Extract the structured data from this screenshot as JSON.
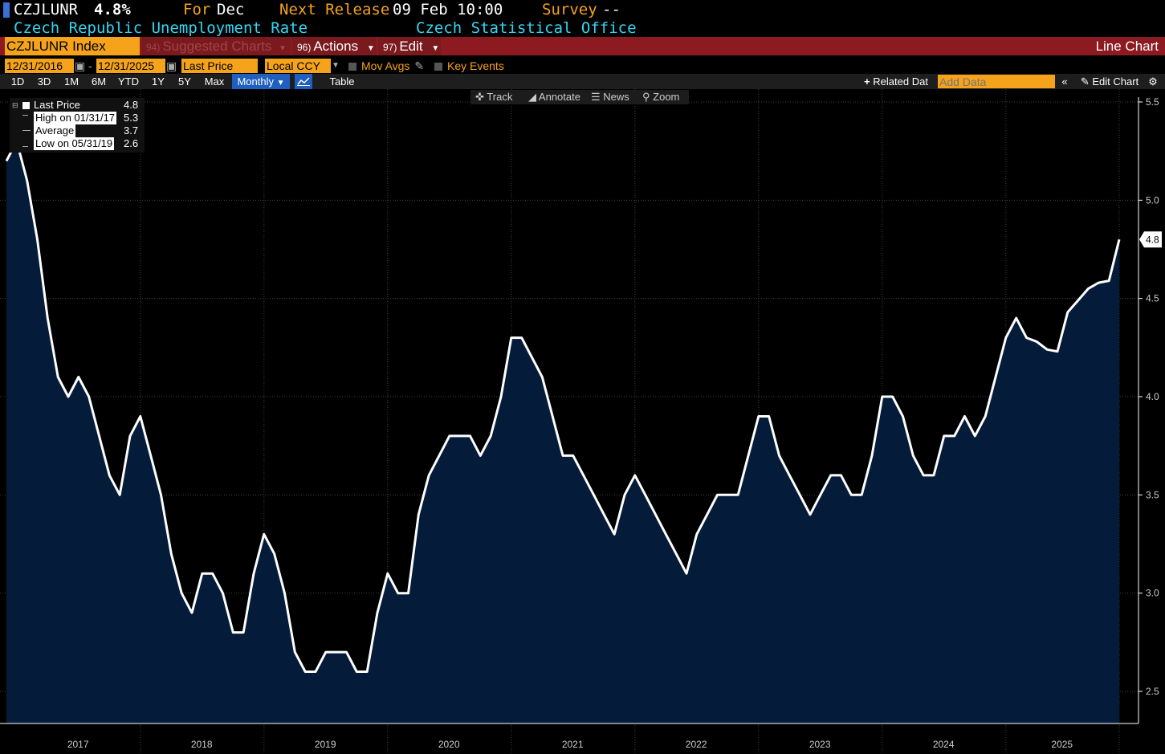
{
  "header": {
    "ticker": "CZJLUNR",
    "last_value": "4.8%",
    "for_label": "For",
    "for_period": "Dec",
    "next_release_label": "Next Release",
    "next_release_value": "09 Feb 10:00",
    "survey_label": "Survey",
    "survey_value": "--",
    "description": "Czech Republic Unemployment Rate",
    "source": "Czech Statistical Office"
  },
  "toolbar": {
    "ticker_field": "CZJLUNR Index",
    "suggested_num": "94)",
    "suggested_label": "Suggested Charts",
    "actions_num": "96)",
    "actions_label": "Actions",
    "edit_num": "97)",
    "edit_label": "Edit",
    "chart_type": "Line Chart"
  },
  "date_row": {
    "start_date": "12/31/2016",
    "separator": "-",
    "end_date": "12/31/2025",
    "price_field": "Last Price",
    "currency": "Local CCY",
    "mov_avgs": "Mov Avgs",
    "key_events": "Key Events"
  },
  "periods": {
    "buttons": [
      "1D",
      "3D",
      "1M",
      "6M",
      "YTD",
      "1Y",
      "5Y",
      "Max"
    ],
    "frequency": "Monthly",
    "table": "Table",
    "related_data": "Related Dat",
    "add_data_placeholder": "Add Data",
    "edit_chart": "Edit Chart"
  },
  "chart_tools": {
    "track": "Track",
    "annotate": "Annotate",
    "news": "News",
    "zoom": "Zoom"
  },
  "legend": {
    "last_price_label": "Last Price",
    "last_price_value": "4.8",
    "high_label": "High on 01/31/17",
    "high_value": "5.3",
    "average_label": "Average",
    "average_value": "3.7",
    "low_label": "Low on 05/31/19",
    "low_value": "2.6"
  },
  "colors": {
    "line": "#ffffff",
    "area_fill": "#041c3a",
    "accent_orange": "#f5a31a",
    "toolbar_red": "#8c1a20",
    "cyan_text": "#33d6f2"
  },
  "chart_data": {
    "type": "area",
    "title": "",
    "xlabel": "",
    "ylabel": "",
    "ylim": [
      2.4,
      5.55
    ],
    "yticks": [
      "2.5",
      "3.0",
      "3.5",
      "4.0",
      "4.5",
      "5.0",
      "5.5"
    ],
    "xtick_labels": [
      "2017",
      "2018",
      "2019",
      "2020",
      "2021",
      "2022",
      "2023",
      "2024",
      "2025"
    ],
    "last_value_label": "4.8",
    "series": [
      {
        "start": "2016-12",
        "end": "2025-12",
        "frequency": "monthly",
        "values": [
          5.2,
          5.3,
          5.1,
          4.8,
          4.4,
          4.1,
          4.0,
          4.1,
          4.0,
          3.8,
          3.6,
          3.5,
          3.8,
          3.9,
          3.7,
          3.5,
          3.2,
          3.0,
          2.9,
          3.1,
          3.1,
          3.0,
          2.8,
          2.8,
          3.1,
          3.3,
          3.2,
          3.0,
          2.7,
          2.6,
          2.6,
          2.7,
          2.7,
          2.7,
          2.6,
          2.6,
          2.9,
          3.1,
          3.0,
          3.0,
          3.4,
          3.6,
          3.7,
          3.8,
          3.8,
          3.8,
          3.7,
          3.8,
          4.0,
          4.3,
          4.3,
          4.2,
          4.1,
          3.9,
          3.7,
          3.7,
          3.6,
          3.5,
          3.4,
          3.3,
          3.5,
          3.6,
          3.5,
          3.4,
          3.3,
          3.2,
          3.1,
          3.3,
          3.4,
          3.5,
          3.5,
          3.5,
          3.7,
          3.9,
          3.9,
          3.7,
          3.6,
          3.5,
          3.4,
          3.5,
          3.6,
          3.6,
          3.5,
          3.5,
          3.7,
          4.0,
          4.0,
          3.9,
          3.7,
          3.6,
          3.6,
          3.8,
          3.8,
          3.9,
          3.8,
          3.9,
          4.1,
          4.3,
          4.4,
          4.3,
          4.28,
          4.24,
          4.23,
          4.43,
          4.49,
          4.55,
          4.58,
          4.59,
          4.8
        ]
      }
    ]
  }
}
